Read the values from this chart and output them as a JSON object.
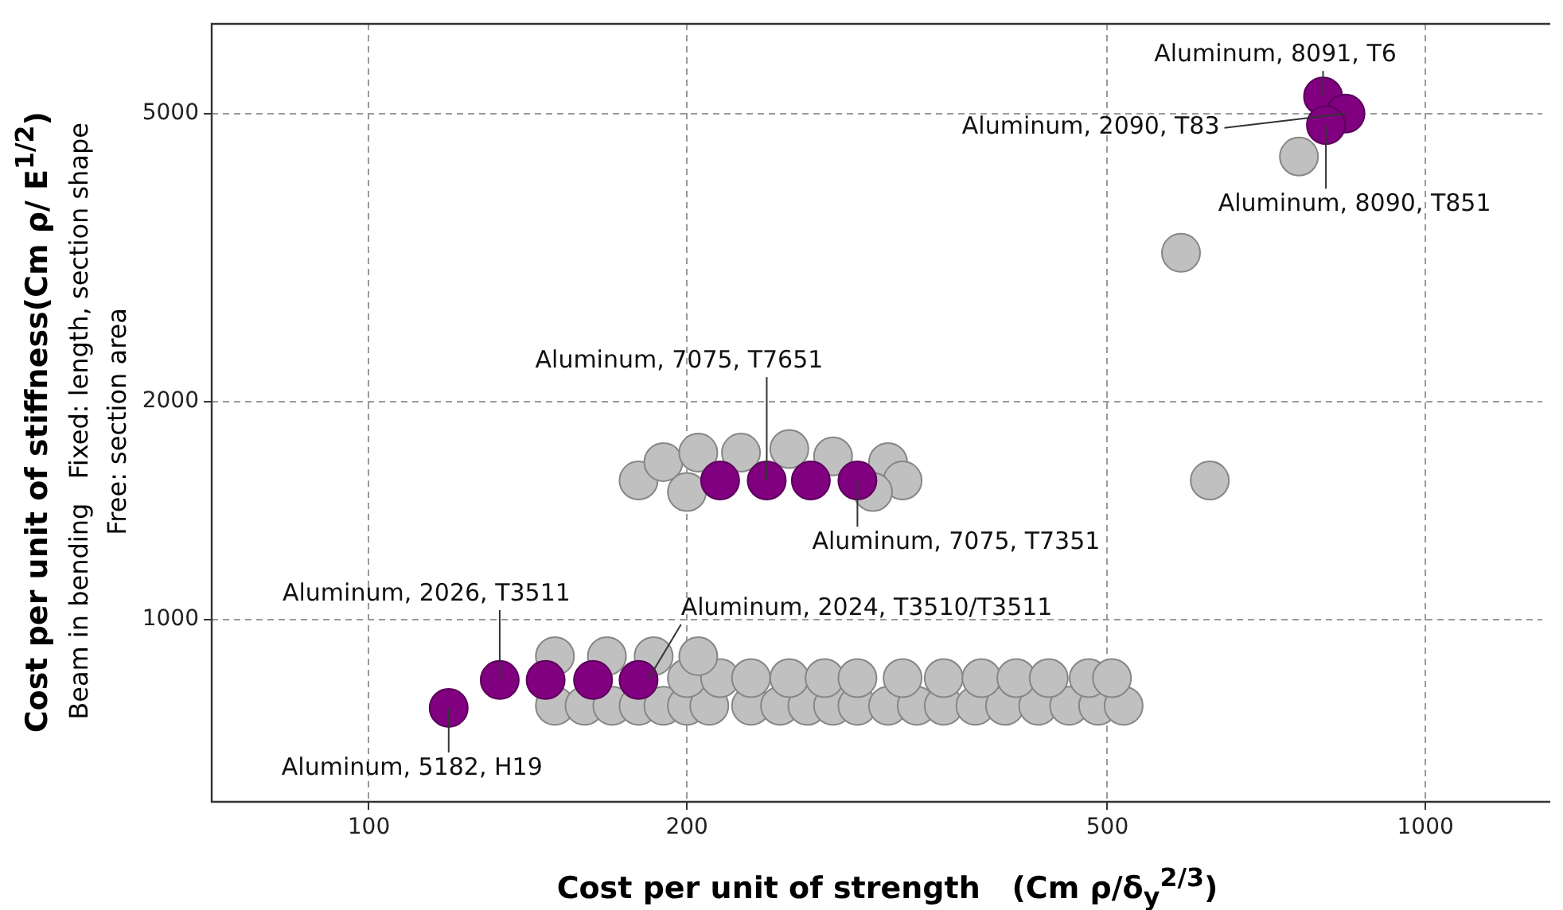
{
  "chart_data": {
    "type": "scatter",
    "xlabel": "Cost per unit of strength   (Cm ρ/δ$_{y}$$^{2/3}$)",
    "ylabel": "Cost per unit of stiffness(Cm ρ/ E$^{1/2}$)",
    "log": "xy",
    "grid": true,
    "marker": "circle",
    "xlim": [
      71,
      1290
    ],
    "ylim": [
      560,
      6650
    ],
    "xticks": [
      100,
      200,
      500,
      1000
    ],
    "yticks": [
      1000,
      2000,
      5000
    ],
    "series": [
      {
        "color": "#c0c0c0",
        "x": [
          759,
          587,
          625,
          180,
          190,
          205,
          225,
          250,
          275,
          310,
          320,
          200,
          300,
          150,
          160,
          170,
          180,
          190,
          200,
          210,
          230,
          245,
          260,
          275,
          290,
          310,
          330,
          350,
          375,
          400,
          430,
          460,
          490,
          518,
          200,
          215,
          230,
          250,
          270,
          290,
          320,
          350,
          380,
          410,
          440,
          480,
          505,
          150,
          168,
          186,
          205
        ],
        "values": [
          4360,
          3210,
          1556,
          1556,
          1650,
          1700,
          1700,
          1720,
          1680,
          1650,
          1556,
          1500,
          1500,
          760,
          760,
          760,
          760,
          760,
          760,
          760,
          760,
          760,
          760,
          760,
          760,
          760,
          760,
          760,
          760,
          760,
          760,
          760,
          760,
          760,
          830,
          830,
          830,
          830,
          830,
          830,
          830,
          830,
          830,
          830,
          830,
          830,
          830,
          890,
          890,
          890,
          890
        ]
      },
      {
        "color": "#800080",
        "x": [
          800,
          840,
          805,
          215,
          238,
          262,
          290,
          119,
          133,
          147,
          163,
          180
        ],
        "values": [
          5280,
          5000,
          4820,
          1556,
          1556,
          1556,
          1556,
          755,
          825,
          825,
          825,
          825
        ]
      }
    ],
    "annotations": [
      {
        "text": "Aluminum, 8091, T6",
        "x": 800,
        "y": 5280
      },
      {
        "text": "Aluminum, 2090, T83",
        "x": 840,
        "y": 5000
      },
      {
        "text": "Aluminum, 8090, T851",
        "x": 805,
        "y": 4820
      },
      {
        "text": "Aluminum, 7075, T7651",
        "x": 238,
        "y": 1556
      },
      {
        "text": "Aluminum, 7075, T7351",
        "x": 290,
        "y": 1556
      },
      {
        "text": "Aluminum, 2026, T3511",
        "x": 133,
        "y": 825
      },
      {
        "text": "Aluminum, 2024, T3510/T3511",
        "x": 184,
        "y": 829
      },
      {
        "text": "Aluminum, 5182, H19",
        "x": 119,
        "y": 755
      },
      "Beam in bending   Fixed: length, section shape",
      "Free: section area"
    ]
  }
}
